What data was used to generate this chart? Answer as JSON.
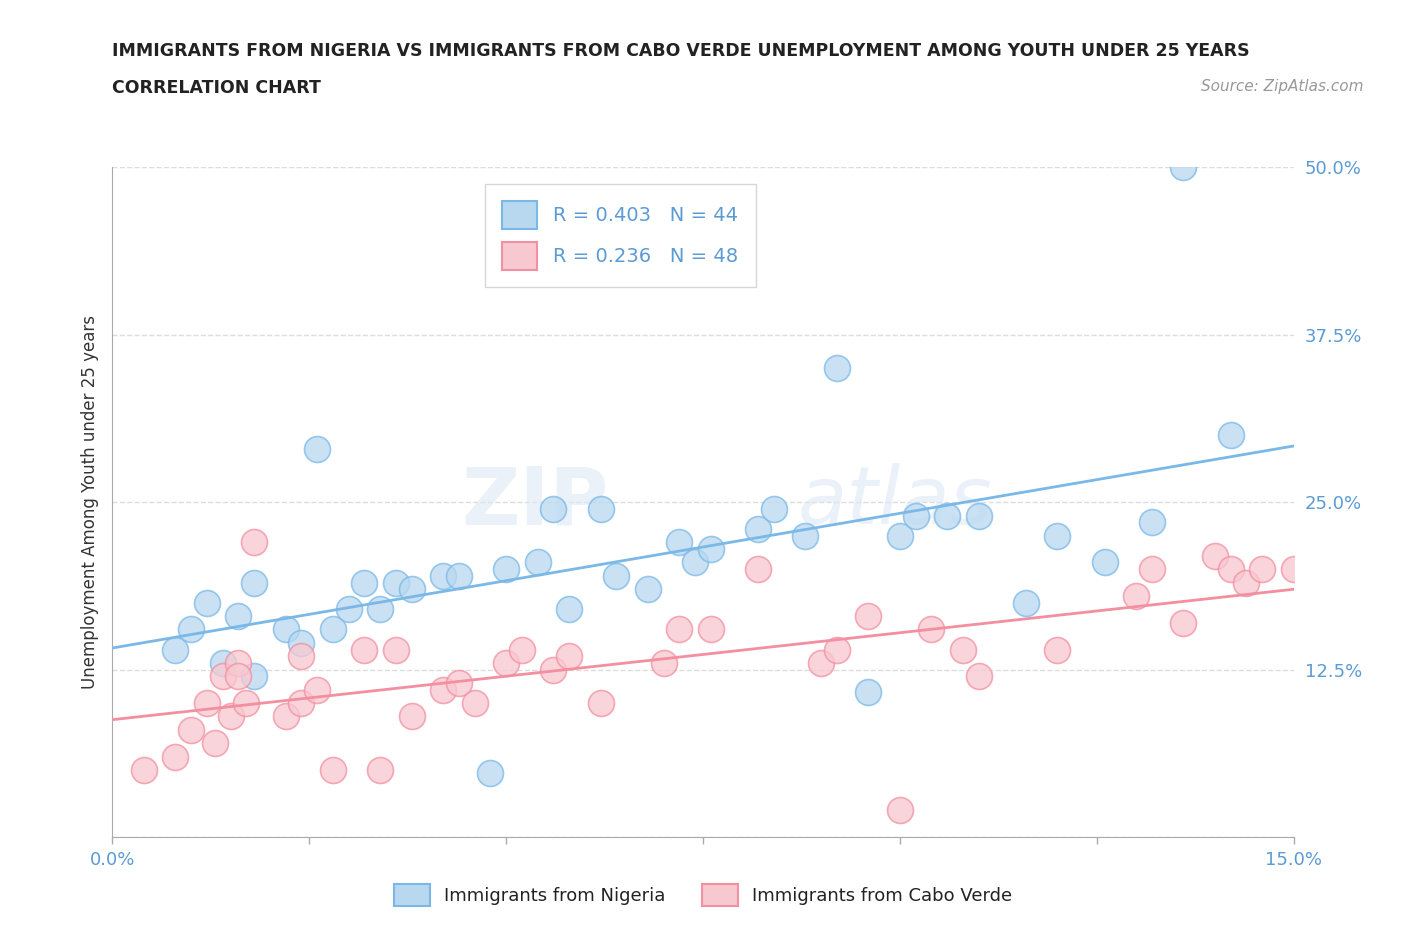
{
  "title_line1": "IMMIGRANTS FROM NIGERIA VS IMMIGRANTS FROM CABO VERDE UNEMPLOYMENT AMONG YOUTH UNDER 25 YEARS",
  "title_line2": "CORRELATION CHART",
  "source_text": "Source: ZipAtlas.com",
  "ylabel": "Unemployment Among Youth under 25 years",
  "xlim": [
    0.0,
    0.15
  ],
  "ylim": [
    0.0,
    0.5
  ],
  "xticks": [
    0.0,
    0.025,
    0.05,
    0.075,
    0.1,
    0.125,
    0.15
  ],
  "xticklabels": [
    "0.0%",
    "",
    "",
    "",
    "",
    "",
    "15.0%"
  ],
  "yticks": [
    0.0,
    0.125,
    0.25,
    0.375,
    0.5
  ],
  "yticklabels": [
    "",
    "12.5%",
    "25.0%",
    "37.5%",
    "50.0%"
  ],
  "nigeria_color": "#7ab8e8",
  "nigeria_color_fill": "#b8d8f0",
  "cabo_color": "#f28fa0",
  "cabo_color_fill": "#f8c8d0",
  "nigeria_R": 0.403,
  "nigeria_N": 44,
  "cabo_R": 0.236,
  "cabo_N": 48,
  "legend_label_nigeria": "Immigrants from Nigeria",
  "legend_label_cabo": "Immigrants from Cabo Verde",
  "watermark_1": "ZIP",
  "watermark_2": "atlas",
  "title_color": "#222222",
  "tick_color": "#5b9bd5",
  "label_color": "#333333",
  "source_color": "#999999",
  "grid_color": "#dddddd",
  "nigeria_x": [
    0.008,
    0.01,
    0.012,
    0.014,
    0.016,
    0.018,
    0.018,
    0.022,
    0.024,
    0.026,
    0.028,
    0.03,
    0.032,
    0.034,
    0.036,
    0.038,
    0.042,
    0.044,
    0.048,
    0.05,
    0.054,
    0.056,
    0.058,
    0.062,
    0.064,
    0.068,
    0.072,
    0.074,
    0.076,
    0.082,
    0.084,
    0.088,
    0.092,
    0.096,
    0.1,
    0.102,
    0.106,
    0.11,
    0.116,
    0.12,
    0.126,
    0.132,
    0.136,
    0.142
  ],
  "nigeria_y": [
    0.14,
    0.155,
    0.175,
    0.13,
    0.165,
    0.12,
    0.19,
    0.155,
    0.145,
    0.29,
    0.155,
    0.17,
    0.19,
    0.17,
    0.19,
    0.185,
    0.195,
    0.195,
    0.048,
    0.2,
    0.205,
    0.245,
    0.17,
    0.245,
    0.195,
    0.185,
    0.22,
    0.205,
    0.215,
    0.23,
    0.245,
    0.225,
    0.35,
    0.108,
    0.225,
    0.24,
    0.24,
    0.24,
    0.175,
    0.225,
    0.205,
    0.235,
    0.5,
    0.3
  ],
  "cabo_x": [
    0.004,
    0.008,
    0.01,
    0.012,
    0.014,
    0.016,
    0.013,
    0.015,
    0.017,
    0.016,
    0.018,
    0.022,
    0.024,
    0.024,
    0.026,
    0.028,
    0.032,
    0.034,
    0.036,
    0.038,
    0.042,
    0.044,
    0.046,
    0.05,
    0.052,
    0.056,
    0.058,
    0.062,
    0.07,
    0.072,
    0.076,
    0.082,
    0.09,
    0.092,
    0.096,
    0.1,
    0.104,
    0.108,
    0.11,
    0.12,
    0.13,
    0.132,
    0.136,
    0.14,
    0.142,
    0.144,
    0.146,
    0.15
  ],
  "cabo_y": [
    0.05,
    0.06,
    0.08,
    0.1,
    0.12,
    0.13,
    0.07,
    0.09,
    0.1,
    0.12,
    0.22,
    0.09,
    0.135,
    0.1,
    0.11,
    0.05,
    0.14,
    0.05,
    0.14,
    0.09,
    0.11,
    0.115,
    0.1,
    0.13,
    0.14,
    0.125,
    0.135,
    0.1,
    0.13,
    0.155,
    0.155,
    0.2,
    0.13,
    0.14,
    0.165,
    0.02,
    0.155,
    0.14,
    0.12,
    0.14,
    0.18,
    0.2,
    0.16,
    0.21,
    0.2,
    0.19,
    0.2,
    0.2
  ]
}
